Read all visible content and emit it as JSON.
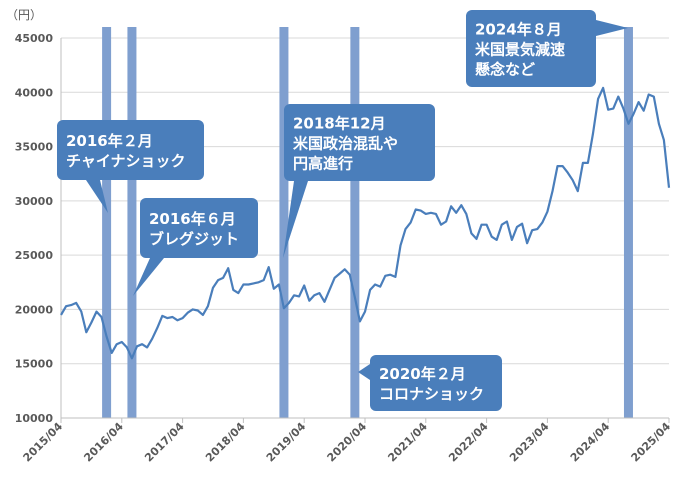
{
  "chart_data": {
    "type": "line",
    "unit_label": "（円）",
    "ylim": [
      10000,
      45000
    ],
    "yticks": [
      10000,
      15000,
      20000,
      25000,
      30000,
      35000,
      40000,
      45000
    ],
    "xlim": [
      "2015/04",
      "2025/04"
    ],
    "xticks": [
      "2015/04",
      "2016/04",
      "2017/04",
      "2018/04",
      "2019/04",
      "2020/04",
      "2021/04",
      "2022/04",
      "2023/04",
      "2024/04",
      "2025/04"
    ],
    "grid": "horizontal",
    "line_color": "#4a7ebb",
    "band_color": "#7f9fcf",
    "series": [
      {
        "x": [
          "2015/04",
          "2015/05",
          "2015/06",
          "2015/07",
          "2015/08",
          "2015/09",
          "2015/10",
          "2015/11",
          "2015/12",
          "2016/01",
          "2016/02",
          "2016/03",
          "2016/04",
          "2016/05",
          "2016/06",
          "2016/07",
          "2016/08",
          "2016/09",
          "2016/10",
          "2016/11",
          "2016/12",
          "2017/01",
          "2017/02",
          "2017/03",
          "2017/04",
          "2017/05",
          "2017/06",
          "2017/07",
          "2017/08",
          "2017/09",
          "2017/10",
          "2017/11",
          "2017/12",
          "2018/01",
          "2018/02",
          "2018/03",
          "2018/04",
          "2018/05",
          "2018/06",
          "2018/07",
          "2018/08",
          "2018/09",
          "2018/10",
          "2018/11",
          "2018/12",
          "2019/01",
          "2019/02",
          "2019/03",
          "2019/04",
          "2019/05",
          "2019/06",
          "2019/07",
          "2019/08",
          "2019/09",
          "2019/10",
          "2019/11",
          "2019/12",
          "2020/01",
          "2020/02",
          "2020/03",
          "2020/04",
          "2020/05",
          "2020/06",
          "2020/07",
          "2020/08",
          "2020/09",
          "2020/10",
          "2020/11",
          "2020/12",
          "2021/01",
          "2021/02",
          "2021/03",
          "2021/04",
          "2021/05",
          "2021/06",
          "2021/07",
          "2021/08",
          "2021/09",
          "2021/10",
          "2021/11",
          "2021/12",
          "2022/01",
          "2022/02",
          "2022/03",
          "2022/04",
          "2022/05",
          "2022/06",
          "2022/07",
          "2022/08",
          "2022/09",
          "2022/10",
          "2022/11",
          "2022/12",
          "2023/01",
          "2023/02",
          "2023/03",
          "2023/04",
          "2023/05",
          "2023/06",
          "2023/07",
          "2023/08",
          "2023/09",
          "2023/10",
          "2023/11",
          "2023/12",
          "2024/01",
          "2024/02",
          "2024/03",
          "2024/04",
          "2024/05",
          "2024/06",
          "2024/07",
          "2024/08",
          "2024/09",
          "2024/10",
          "2024/11",
          "2024/12",
          "2025/01",
          "2025/02",
          "2025/03",
          "2025/04"
        ],
        "y": [
          19500,
          20300,
          20400,
          20600,
          19800,
          17900,
          18800,
          19800,
          19300,
          17500,
          16000,
          16800,
          17000,
          16500,
          15500,
          16600,
          16800,
          16500,
          17300,
          18300,
          19400,
          19200,
          19300,
          19000,
          19200,
          19700,
          20000,
          19900,
          19500,
          20300,
          22000,
          22700,
          22900,
          23800,
          21800,
          21500,
          22300,
          22300,
          22400,
          22500,
          22700,
          23900,
          21900,
          22300,
          20100,
          20600,
          21300,
          21200,
          22200,
          20800,
          21300,
          21500,
          20700,
          21800,
          22900,
          23300,
          23700,
          23200,
          21100,
          18900,
          19800,
          21800,
          22300,
          22100,
          23100,
          23200,
          23000,
          25900,
          27400,
          28000,
          29200,
          29100,
          28800,
          28900,
          28800,
          27800,
          28100,
          29500,
          28900,
          29600,
          28800,
          27000,
          26500,
          27800,
          27800,
          26700,
          26400,
          27800,
          28100,
          26400,
          27600,
          27900,
          26100,
          27300,
          27400,
          28000,
          29000,
          30900,
          33200,
          33200,
          32600,
          31900,
          30900,
          33500,
          33500,
          36200,
          39400,
          40400,
          38400,
          38500,
          39600,
          38500,
          37100,
          38000,
          39100,
          38300,
          39800,
          39600,
          37100,
          35600,
          31200
        ]
      }
    ],
    "event_bands": [
      "2016/01",
      "2016/06",
      "2018/12",
      "2020/02",
      "2024/08"
    ],
    "annotations": [
      {
        "lines": [
          "2016年２月",
          "チャイナショック"
        ]
      },
      {
        "lines": [
          "2016年６月",
          "ブレグジット"
        ]
      },
      {
        "lines": [
          "2018年12月",
          "米国政治混乱や",
          "円高進行"
        ]
      },
      {
        "lines": [
          "2020年２月",
          "コロナショック"
        ]
      },
      {
        "lines": [
          "2024年８月",
          "米国景気減速",
          "懸念など"
        ]
      }
    ]
  }
}
